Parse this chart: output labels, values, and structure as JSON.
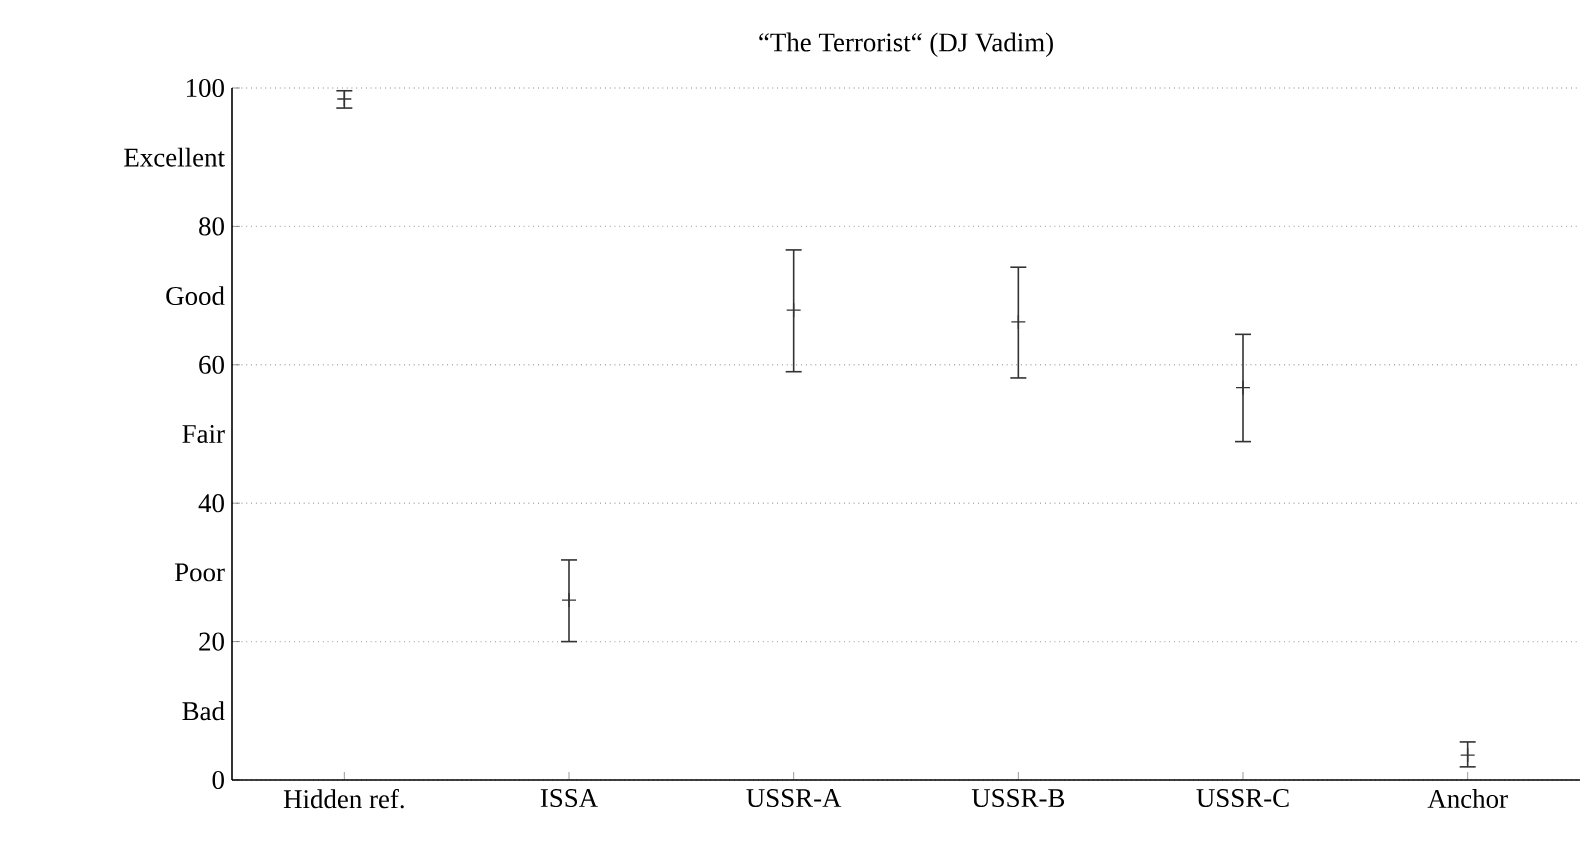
{
  "chart_data": {
    "type": "scatter",
    "title": "“The Terrorist“ (DJ Vadim)",
    "categories": [
      "Hidden ref.",
      "ISSA",
      "USSR-A",
      "USSR-B",
      "USSR-C",
      "Anchor"
    ],
    "values": [
      98.4,
      26.0,
      67.9,
      66.2,
      56.7,
      3.6
    ],
    "errors": [
      [
        97.1,
        99.6
      ],
      [
        20.0,
        31.8
      ],
      [
        59.0,
        76.6
      ],
      [
        58.1,
        74.1
      ],
      [
        48.9,
        64.4
      ],
      [
        1.9,
        5.5
      ]
    ],
    "color": "#333333",
    "marker": "cross",
    "ylim": [
      0,
      100
    ],
    "yticks": [
      0,
      {
        "value": 10,
        "label": "Bad"
      },
      20,
      {
        "value": 30,
        "label": "Poor"
      },
      40,
      {
        "value": 50,
        "label": "Fair"
      },
      60,
      {
        "value": 70,
        "label": "Good"
      },
      80,
      {
        "value": 90,
        "label": "Excellent"
      },
      100
    ],
    "grid": "y"
  }
}
